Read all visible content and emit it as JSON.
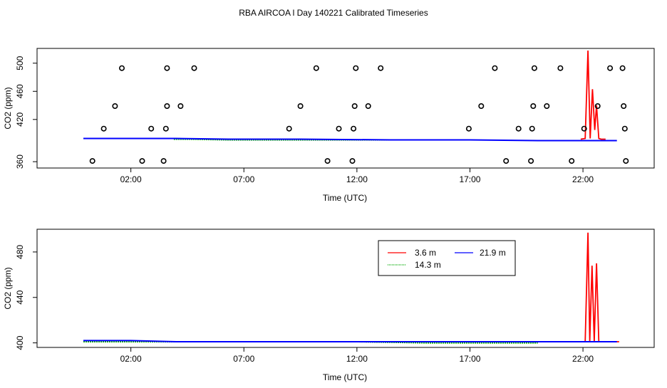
{
  "page_title": "RBA AIRCOA l  Day 140221  Calibrated Timeseries",
  "colors": {
    "height_3_6": "#ff0000",
    "height_14_3": "#00aa00",
    "height_21_9": "#0000ff",
    "calibration": "#000000"
  },
  "chart_data": [
    {
      "type": "line",
      "title": "RBA AIRCOA l  Day 140221  Calibrated Timeseries",
      "xlabel": "Time (UTC)",
      "ylabel": "CO2 (ppm)",
      "xlim": [
        -2.15,
        25.15
      ],
      "ylim": [
        351,
        521
      ],
      "x_ticks": [
        2,
        7,
        12,
        17,
        22
      ],
      "x_tick_labels": [
        "02:00",
        "07:00",
        "12:00",
        "17:00",
        "22:00"
      ],
      "y_ticks": [
        360,
        420,
        460,
        500
      ],
      "y_tick_labels": [
        "360",
        "420",
        "460",
        "500"
      ],
      "series": [
        {
          "name": "3.6 m",
          "color": "#ff0000",
          "x": [
            21.9,
            22.1,
            22.22,
            22.32,
            22.42,
            22.52,
            22.6,
            22.7,
            22.8,
            23.0
          ],
          "y": [
            392,
            393,
            518,
            393,
            463,
            405,
            440,
            393,
            392,
            392
          ]
        },
        {
          "name": "14.3 m",
          "color": "#00aa00",
          "x": [
            3.9,
            4.6,
            6.3,
            10.1,
            13.2,
            15.5
          ],
          "y": [
            392,
            392,
            391,
            391,
            391,
            391
          ]
        },
        {
          "name": "21.9 m",
          "color": "#0000ff",
          "x": [
            -0.1,
            4.0,
            6.3,
            9.5,
            13.5,
            17.0,
            20.0,
            22.0,
            23.5
          ],
          "y": [
            393,
            393,
            392,
            392,
            391,
            391,
            390,
            390,
            390
          ]
        }
      ],
      "calibration_points": {
        "x": [
          0.3,
          0.8,
          1.3,
          1.6,
          2.5,
          2.9,
          3.45,
          3.55,
          3.6,
          3.6,
          4.2,
          4.8,
          9.0,
          9.5,
          10.2,
          10.7,
          11.2,
          11.8,
          11.85,
          11.9,
          11.95,
          12.5,
          13.05,
          16.95,
          17.5,
          18.1,
          18.6,
          19.15,
          19.7,
          19.75,
          19.8,
          19.85,
          20.4,
          21.0,
          21.5,
          22.05,
          22.65,
          23.2,
          23.75,
          23.8,
          23.85,
          23.9
        ],
        "y": [
          361,
          407,
          439,
          493,
          361,
          407,
          361,
          407,
          439,
          493,
          439,
          493,
          407,
          439,
          493,
          361,
          407,
          361,
          407,
          439,
          493,
          439,
          493,
          407,
          439,
          493,
          361,
          407,
          361,
          407,
          439,
          493,
          439,
          493,
          361,
          407,
          439,
          493,
          493,
          439,
          407,
          361
        ]
      }
    },
    {
      "type": "line",
      "title": "",
      "xlabel": "Time (UTC)",
      "ylabel": "CO2 (ppm)",
      "xlim": [
        -2.15,
        25.15
      ],
      "ylim": [
        396,
        500
      ],
      "x_ticks": [
        2,
        7,
        12,
        17,
        22
      ],
      "x_tick_labels": [
        "02:00",
        "07:00",
        "12:00",
        "17:00",
        "22:00"
      ],
      "y_ticks": [
        400,
        440,
        480
      ],
      "y_tick_labels": [
        "400",
        "440",
        "480"
      ],
      "legend": {
        "position": "top-right",
        "entries": [
          "3.6 m",
          "21.9 m",
          "14.3 m"
        ]
      },
      "series": [
        {
          "name": "3.6 m",
          "color": "#ff0000",
          "x": [
            21.9,
            22.1,
            22.22,
            22.3,
            22.4,
            22.5,
            22.6,
            22.7,
            22.8,
            23.0,
            23.6
          ],
          "y": [
            401,
            401,
            497,
            401,
            468,
            401,
            470,
            401,
            401,
            401,
            401
          ]
        },
        {
          "name": "14.3 m",
          "color": "#00aa00",
          "x": [
            -0.1,
            3.0,
            6.0,
            9.0,
            12.0,
            15.0,
            18.0,
            20.0
          ],
          "y": [
            401,
            401,
            401,
            401,
            401,
            400,
            400,
            400
          ]
        },
        {
          "name": "21.9 m",
          "color": "#0000ff",
          "x": [
            -0.1,
            2.0,
            4.0,
            6.0,
            9.0,
            12.0,
            15.0,
            18.0,
            20.0,
            22.0,
            23.5
          ],
          "y": [
            402,
            402,
            401,
            401,
            401,
            401,
            401,
            401,
            401,
            401,
            401
          ]
        }
      ]
    }
  ]
}
